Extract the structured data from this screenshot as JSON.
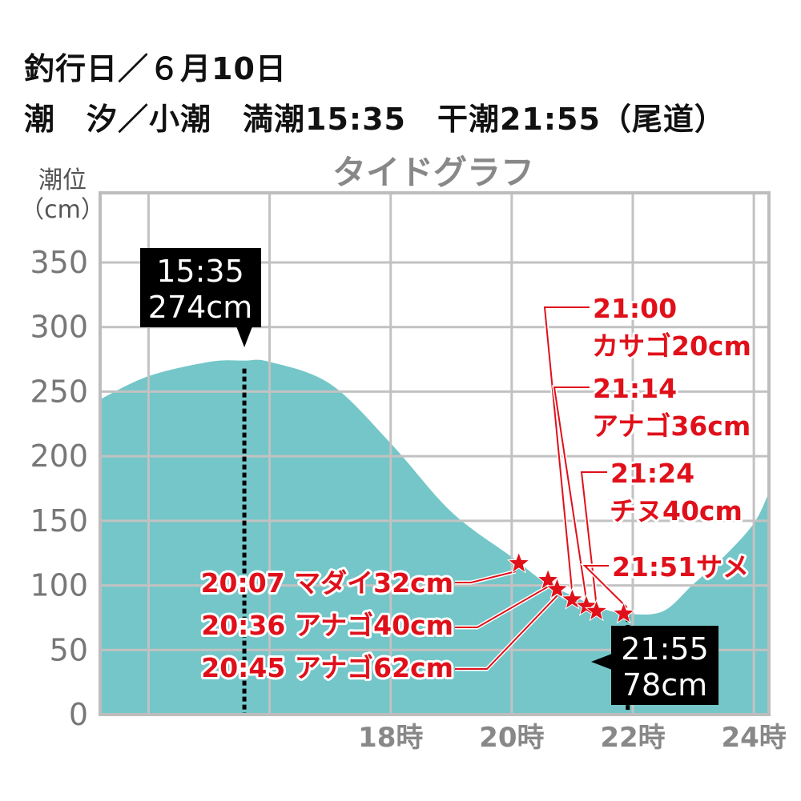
{
  "header": {
    "line1": "釣行日／６月10日",
    "line2": "潮　汐／小潮　満潮15:35　干潮21:55（尾道）"
  },
  "chart_data": {
    "type": "area",
    "title": "タイドグラフ",
    "ylabel_line1": "潮位",
    "ylabel_line2": "（cm）",
    "ylim": [
      0,
      350
    ],
    "y_ticks": [
      "0",
      "50",
      "100",
      "150",
      "200",
      "250",
      "300",
      "350"
    ],
    "xlim_hours": [
      13.2,
      24.25
    ],
    "x_ticks": [
      {
        "hour": 18,
        "label": "18時"
      },
      {
        "hour": 20,
        "label": "20時"
      },
      {
        "hour": 22,
        "label": "22時"
      },
      {
        "hour": 24,
        "label": "24時"
      }
    ],
    "grid": true,
    "fill_color": "#74c6c8",
    "accent_color": "#e0101a",
    "high_tide": {
      "time": "15:35",
      "level": "274cm",
      "hour": 15.583,
      "value": 274
    },
    "low_tide": {
      "time": "21:55",
      "level": "78cm",
      "hour": 21.917,
      "value": 78
    },
    "tide_curve": [
      {
        "hour": 13.2,
        "value": 244
      },
      {
        "hour": 14.0,
        "value": 262
      },
      {
        "hour": 15.0,
        "value": 273
      },
      {
        "hour": 15.583,
        "value": 274
      },
      {
        "hour": 16.0,
        "value": 273
      },
      {
        "hour": 17.0,
        "value": 256
      },
      {
        "hour": 18.0,
        "value": 210
      },
      {
        "hour": 19.0,
        "value": 157
      },
      {
        "hour": 20.0,
        "value": 122
      },
      {
        "hour": 20.5,
        "value": 104
      },
      {
        "hour": 21.0,
        "value": 92
      },
      {
        "hour": 21.5,
        "value": 82
      },
      {
        "hour": 21.917,
        "value": 78
      },
      {
        "hour": 22.5,
        "value": 80
      },
      {
        "hour": 23.0,
        "value": 101
      },
      {
        "hour": 23.5,
        "value": 122
      },
      {
        "hour": 24.0,
        "value": 148
      },
      {
        "hour": 24.25,
        "value": 172
      }
    ],
    "catches": [
      {
        "hour": 20.117,
        "value": 117,
        "label": "20:07 マダイ32cm"
      },
      {
        "hour": 20.6,
        "value": 104,
        "label": "20:36 アナゴ40cm"
      },
      {
        "hour": 20.75,
        "value": 97,
        "label": "20:45 アナゴ62cm"
      },
      {
        "hour": 21.0,
        "value": 89,
        "label_time": "21:00",
        "label_fish": "カサゴ20cm"
      },
      {
        "hour": 21.233,
        "value": 84,
        "label_time": "21:14",
        "label_fish": "アナゴ36cm"
      },
      {
        "hour": 21.4,
        "value": 80,
        "label_time": "21:24",
        "label_fish": "チヌ40cm"
      },
      {
        "hour": 21.85,
        "value": 78,
        "label": "21:51サメ"
      }
    ]
  }
}
